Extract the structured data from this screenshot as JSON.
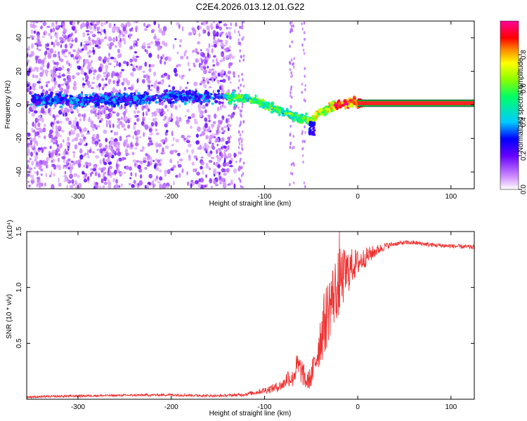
{
  "chart_data": [
    {
      "type": "heatmap",
      "title": "C2E4.2026.013.12.01.G22",
      "xlabel": "Height of straight line (km)",
      "ylabel": "Frequency (Hz)",
      "xlim": [
        -355,
        125
      ],
      "ylim": [
        -50,
        50
      ],
      "x_ticks": [
        -300,
        -200,
        -100,
        0,
        100
      ],
      "y_ticks": [
        -40,
        -20,
        0,
        20,
        40
      ],
      "colorbar": {
        "label": "Normalized spectral amplitude",
        "range": [
          0,
          1
        ],
        "ticks": [
          "0.0",
          "0.2",
          "0.4",
          "0.6",
          "0.8"
        ],
        "colors": [
          "#ffffff",
          "#9900ff",
          "#0000ff",
          "#00e0ff",
          "#00ff00",
          "#ffff00",
          "#ff8800",
          "#ff0000",
          "#ff00aa"
        ]
      },
      "ridge": {
        "x": [
          -350,
          -320,
          -300,
          -280,
          -250,
          -200,
          -170,
          -140,
          -130,
          -110,
          -100,
          -90,
          -80,
          -70,
          -60,
          -50,
          -45,
          -35,
          -25,
          -15,
          -5,
          0,
          125
        ],
        "freq_hz": [
          3,
          3,
          2,
          3,
          3,
          5,
          5,
          4,
          4,
          3,
          0,
          -2,
          -4,
          -6,
          -8,
          -9,
          -7,
          -3,
          0,
          1,
          2,
          1,
          1
        ]
      }
    },
    {
      "type": "line",
      "xlabel": "Height of straight line (km)",
      "ylabel": "SNR (10 * v/v)",
      "y_exponent_label": "(x10⁴)",
      "xlim": [
        -355,
        125
      ],
      "ylim": [
        0,
        1.5
      ],
      "x_ticks": [
        -300,
        -200,
        -100,
        0,
        100
      ],
      "y_ticks": [
        "0.5",
        "1.0",
        "1.5"
      ],
      "y_tick_values": [
        0.5,
        1.0,
        1.5
      ],
      "series": [
        {
          "name": "SNR",
          "color": "#ee3333",
          "x": [
            -355,
            -300,
            -250,
            -200,
            -150,
            -125,
            -110,
            -100,
            -90,
            -80,
            -75,
            -70,
            -65,
            -60,
            -55,
            -50,
            -45,
            -40,
            -35,
            -30,
            -25,
            -20,
            -15,
            -10,
            -5,
            0,
            10,
            20,
            30,
            40,
            50,
            60,
            80,
            100,
            125
          ],
          "y": [
            0.02,
            0.03,
            0.035,
            0.04,
            0.03,
            0.04,
            0.06,
            0.08,
            0.1,
            0.13,
            0.2,
            0.18,
            0.3,
            0.25,
            0.15,
            0.2,
            0.35,
            0.55,
            0.7,
            0.85,
            0.95,
            1.05,
            1.1,
            1.15,
            1.2,
            1.22,
            1.28,
            1.33,
            1.37,
            1.39,
            1.4,
            1.4,
            1.38,
            1.37,
            1.36
          ],
          "noise": [
            0.01,
            0.01,
            0.01,
            0.012,
            0.01,
            0.015,
            0.02,
            0.03,
            0.04,
            0.05,
            0.08,
            0.08,
            0.12,
            0.12,
            0.08,
            0.1,
            0.15,
            0.25,
            0.3,
            0.3,
            0.3,
            0.3,
            0.25,
            0.2,
            0.15,
            0.12,
            0.08,
            0.05,
            0.03,
            0.02,
            0.02,
            0.02,
            0.02,
            0.02,
            0.02
          ]
        }
      ]
    }
  ]
}
